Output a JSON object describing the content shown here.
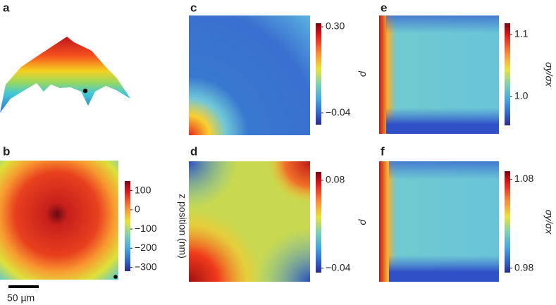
{
  "panels": [
    {
      "label": "a"
    },
    {
      "label": "b",
      "colorbar": {
        "label": "z position (nm)",
        "lim": [
          -320,
          150
        ],
        "ticks": [
          100,
          0,
          {
            "value": -100,
            "label": "−100"
          },
          {
            "value": -200,
            "label": "−200"
          },
          {
            "value": -300,
            "label": "−300"
          }
        ]
      },
      "scale_bar": "50 µm"
    },
    {
      "label": "c",
      "colorbar": {
        "label": "ρ",
        "lim": [
          -0.087,
          0.314
        ],
        "ticks": [
          {
            "value": 0.3,
            "label": "0.30"
          },
          {
            "value": -0.04,
            "label": "−0.04"
          }
        ]
      }
    },
    {
      "label": "d",
      "colorbar": {
        "label": "ρ",
        "lim": [
          -0.046,
          0.0915
        ],
        "ticks": [
          0.08,
          {
            "value": -0.04,
            "label": "−0.04"
          }
        ]
      }
    },
    {
      "label": "e",
      "colorbar": {
        "label": "σy/σx",
        "lim": [
          0.953,
          1.118
        ],
        "ticks": [
          1.1,
          {
            "value": 1,
            "label": "1.0"
          }
        ]
      }
    },
    {
      "label": "f",
      "colorbar": {
        "label": "σy/σx",
        "lim": [
          0.975,
          1.089
        ],
        "ticks": [
          1.08,
          0.98
        ]
      }
    }
  ]
}
